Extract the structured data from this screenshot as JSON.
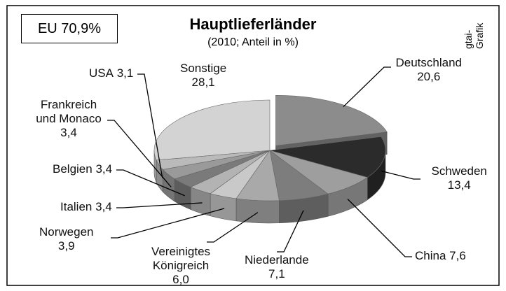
{
  "chart_data": {
    "type": "pie",
    "title": "Hauptlieferländer",
    "subtitle": "(2010; Anteil in %)",
    "annotation": "EU 70,9%",
    "source": "gtai-Grafik",
    "categories": [
      "Deutschland",
      "Schweden",
      "China",
      "Niederlande",
      "Vereinigtes Königreich",
      "Norwegen",
      "Italien",
      "Belgien",
      "Frankreich und Monaco",
      "USA",
      "Sonstige"
    ],
    "values": [
      20.6,
      13.4,
      7.6,
      7.1,
      6.0,
      3.9,
      3.4,
      3.4,
      3.4,
      3.1,
      28.1
    ],
    "value_labels": [
      "20,6",
      "13,4",
      "7,6",
      "7,1",
      "6,0",
      "3,9",
      "3,4",
      "3,4",
      "3,4",
      "3,1",
      "28,1"
    ],
    "colors": [
      "#8c8c8c",
      "#2b2b2b",
      "#9e9e9e",
      "#7d7d7d",
      "#a9a9a9",
      "#c9c9c9",
      "#b3b3b3",
      "#7a7a7a",
      "#9a9a9a",
      "#bababa",
      "#d3d3d3"
    ]
  }
}
